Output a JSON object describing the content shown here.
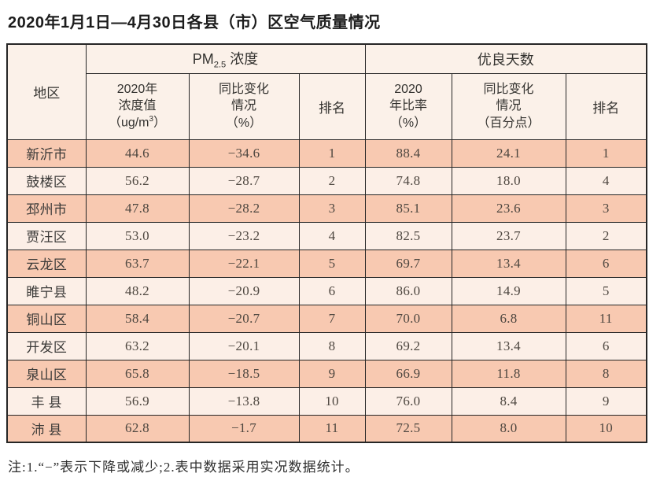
{
  "title": "2020年1月1日—4月30日各县（市）区空气质量情况",
  "footnote": "注:1.“−”表示下降或减少;2.表中数据采用实况数据统计。",
  "colors": {
    "row_odd": "#f8c9b1",
    "row_even": "#fcefe7",
    "header_bg": "#fbf1e9",
    "border": "#262626"
  },
  "header": {
    "region": "地区",
    "pm_group": {
      "prefix": "PM",
      "sub": "2.5",
      "suffix": " 浓度"
    },
    "good_days_group": "优良天数",
    "pm_value": {
      "l1": "2020年",
      "l2": "浓度值",
      "l3_pre": "（ug/m",
      "l3_sup": "3",
      "l3_post": "）"
    },
    "pm_change": "同比变化\n情况\n（%）",
    "pm_rank": "排名",
    "gd_ratio": "2020\n年比率\n（%）",
    "gd_change": "同比变化\n情况\n（百分点）",
    "gd_rank": "排名"
  },
  "rows": [
    {
      "region": "新沂市",
      "pm_value": "44.6",
      "pm_change": "−34.6",
      "pm_rank": "1",
      "gd_ratio": "88.4",
      "gd_change": "24.1",
      "gd_rank": "1"
    },
    {
      "region": "鼓楼区",
      "pm_value": "56.2",
      "pm_change": "−28.7",
      "pm_rank": "2",
      "gd_ratio": "74.8",
      "gd_change": "18.0",
      "gd_rank": "4"
    },
    {
      "region": "邳州市",
      "pm_value": "47.8",
      "pm_change": "−28.2",
      "pm_rank": "3",
      "gd_ratio": "85.1",
      "gd_change": "23.6",
      "gd_rank": "3"
    },
    {
      "region": "贾汪区",
      "pm_value": "53.0",
      "pm_change": "−23.2",
      "pm_rank": "4",
      "gd_ratio": "82.5",
      "gd_change": "23.7",
      "gd_rank": "2"
    },
    {
      "region": "云龙区",
      "pm_value": "63.7",
      "pm_change": "−22.1",
      "pm_rank": "5",
      "gd_ratio": "69.7",
      "gd_change": "13.4",
      "gd_rank": "6"
    },
    {
      "region": "睢宁县",
      "pm_value": "48.2",
      "pm_change": "−20.9",
      "pm_rank": "6",
      "gd_ratio": "86.0",
      "gd_change": "14.9",
      "gd_rank": "5"
    },
    {
      "region": "铜山区",
      "pm_value": "58.4",
      "pm_change": "−20.7",
      "pm_rank": "7",
      "gd_ratio": "70.0",
      "gd_change": "6.8",
      "gd_rank": "11"
    },
    {
      "region": "开发区",
      "pm_value": "63.2",
      "pm_change": "−20.1",
      "pm_rank": "8",
      "gd_ratio": "69.2",
      "gd_change": "13.4",
      "gd_rank": "6"
    },
    {
      "region": "泉山区",
      "pm_value": "65.8",
      "pm_change": "−18.5",
      "pm_rank": "9",
      "gd_ratio": "66.9",
      "gd_change": "11.8",
      "gd_rank": "8"
    },
    {
      "region": "丰 县",
      "pm_value": "56.9",
      "pm_change": "−13.8",
      "pm_rank": "10",
      "gd_ratio": "76.0",
      "gd_change": "8.4",
      "gd_rank": "9"
    },
    {
      "region": "沛 县",
      "pm_value": "62.8",
      "pm_change": "−1.7",
      "pm_rank": "11",
      "gd_ratio": "72.5",
      "gd_change": "8.0",
      "gd_rank": "10"
    }
  ]
}
